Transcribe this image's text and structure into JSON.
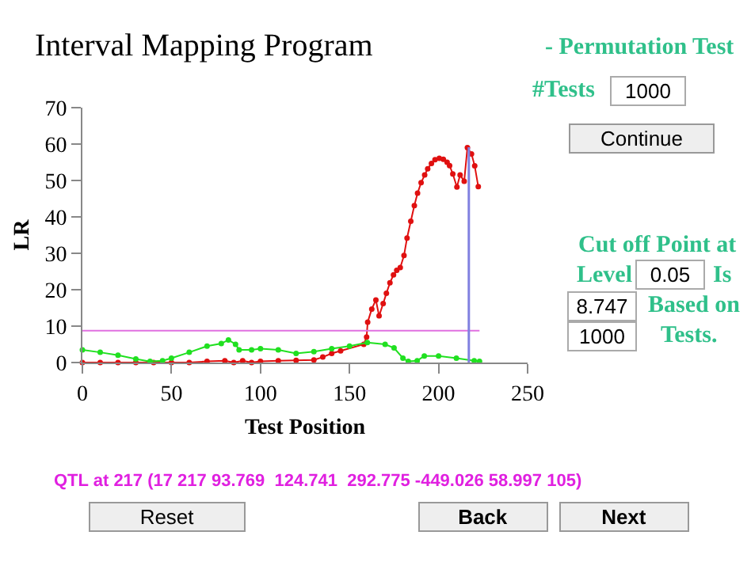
{
  "chart_data": {
    "type": "line",
    "title": "Interval Mapping Program",
    "xlabel": "Test Position",
    "ylabel": "LR",
    "series": [
      {
        "color": "#e01010",
        "x": [
          0,
          10,
          20,
          30,
          40,
          50,
          60,
          70,
          80,
          85,
          90,
          95,
          100,
          110,
          120,
          130,
          135,
          140,
          145,
          158,
          159.6,
          160.2,
          162.5,
          164.8,
          166.6,
          168.9,
          170.7,
          172.7,
          174.7,
          176.5,
          178.5,
          180.6,
          182.3,
          184.4,
          186.4,
          188.2,
          190.2,
          192.2,
          193.9,
          196,
          198,
          200.4,
          202.7,
          204.8,
          206.2,
          208,
          210.3,
          212.1,
          214.4,
          216.2,
          218.5,
          220.3,
          222.3
        ],
        "values": [
          0,
          0,
          0,
          0,
          0,
          0,
          0,
          0.3,
          0.5,
          0,
          0.5,
          0,
          0.3,
          0.5,
          0.6,
          0.7,
          1.5,
          2.5,
          3.2,
          5,
          7,
          11.1,
          14.7,
          17.2,
          12.8,
          16.2,
          19,
          21.9,
          24.1,
          25.3,
          26.1,
          29.4,
          34.2,
          38.8,
          43.1,
          46.5,
          49.4,
          51.5,
          53.2,
          54.7,
          55.7,
          56.1,
          55.8,
          55,
          54.1,
          51.8,
          48.2,
          51.5,
          49.8,
          59,
          57.3,
          54,
          48.3
        ]
      },
      {
        "color": "#20e020",
        "x": [
          0,
          10,
          20,
          30,
          38,
          45,
          50,
          60,
          70,
          78,
          82,
          86,
          88,
          95,
          100,
          110,
          120,
          130,
          140,
          150,
          160,
          170,
          175,
          180,
          183,
          188,
          192,
          200,
          210,
          220,
          223
        ],
        "values": [
          3.5,
          2.8,
          2,
          1,
          0.3,
          0.5,
          1.2,
          2.8,
          4.5,
          5.2,
          6.2,
          5,
          3.5,
          3.5,
          3.8,
          3.5,
          2.5,
          3,
          3.8,
          4.5,
          5.5,
          5,
          4,
          1.2,
          0.3,
          0.5,
          1.8,
          1.8,
          1.2,
          0.5,
          0.3
        ]
      }
    ],
    "xlim": [
      0,
      250
    ],
    "xticks": [
      0,
      50,
      100,
      150,
      200,
      250
    ],
    "ylim": [
      0,
      70
    ],
    "yticks": [
      0,
      10,
      20,
      30,
      40,
      50,
      60,
      70
    ],
    "ref_lines": [
      {
        "axis": "y",
        "value": 8.747,
        "color": "#e070e0"
      },
      {
        "axis": "x",
        "value": 217,
        "color": "#8080e0"
      }
    ],
    "marker": "circle",
    "line_style": "solid",
    "annotations": [
      "- Permutation Test",
      "#Tests",
      "1000",
      "Continue",
      "Cut off Point at",
      "Level",
      "0.05",
      "Is",
      "8.747",
      "Based on",
      "1000",
      "Tests.",
      "QTL at 217 (17 217 93.769  124.741  292.775 -449.026 58.997 105)",
      "Reset",
      "Back",
      "Next"
    ]
  }
}
